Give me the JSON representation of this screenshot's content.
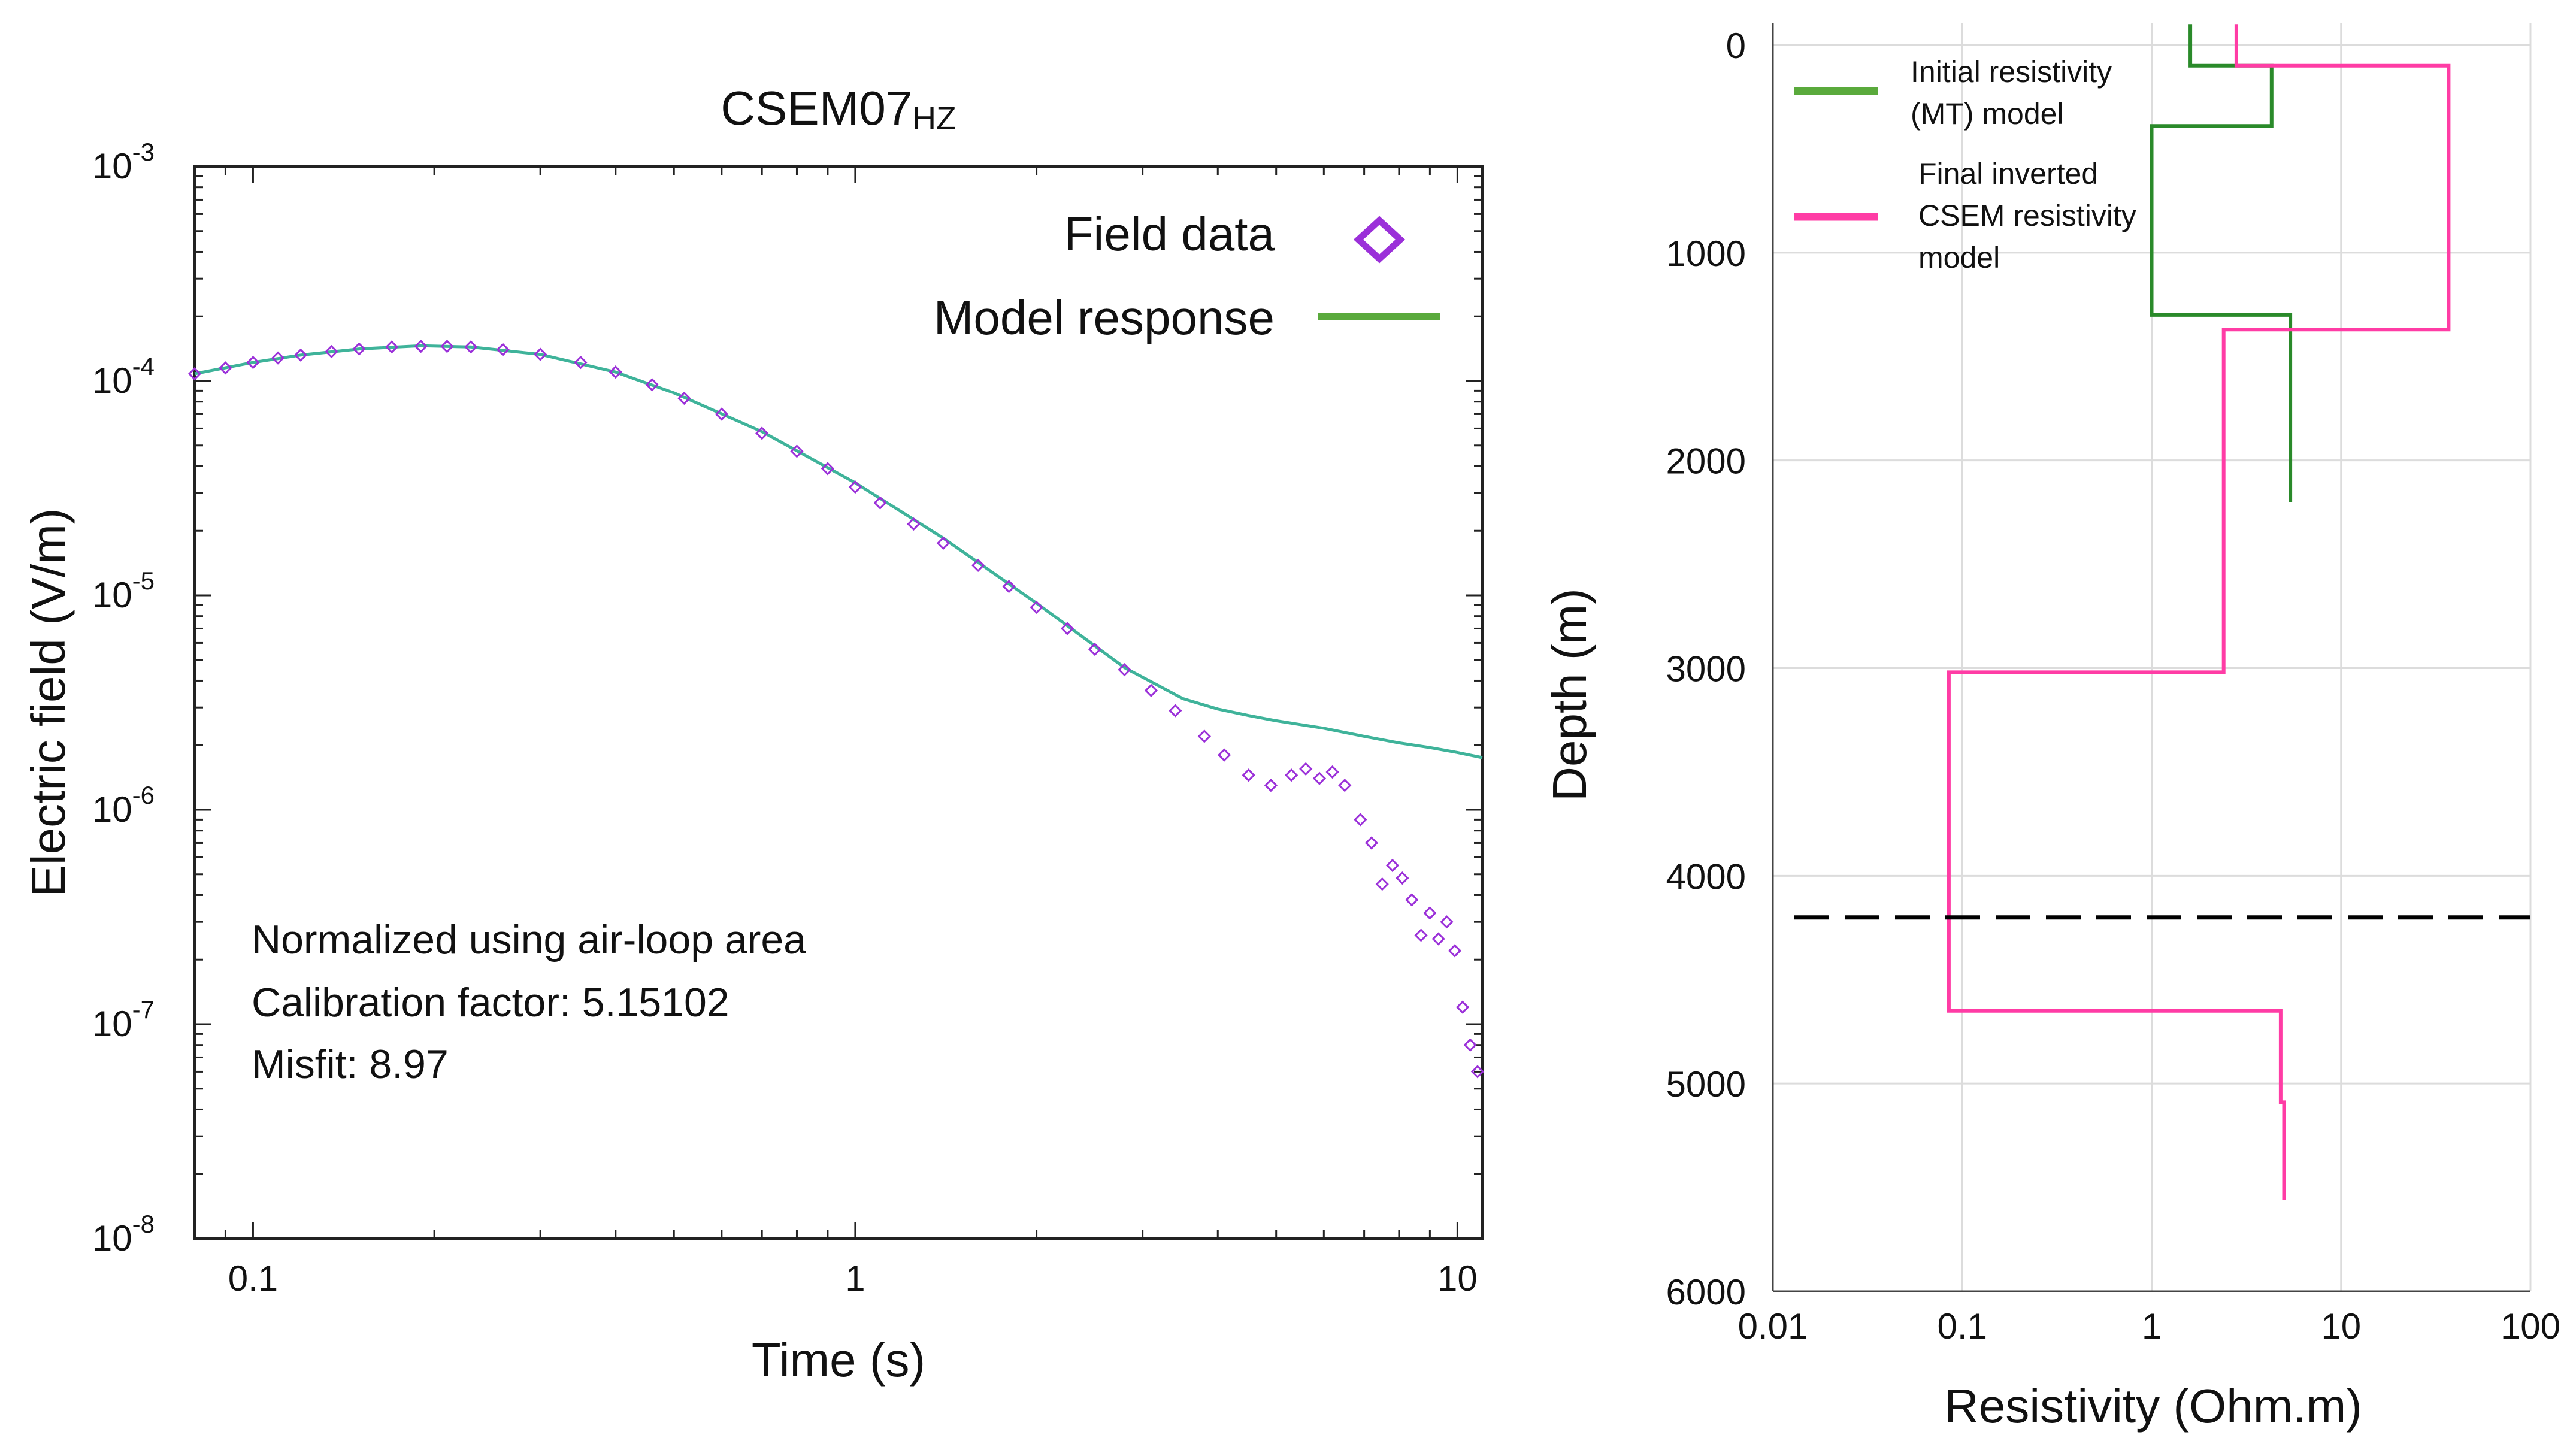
{
  "chart_data": [
    {
      "type": "scatter",
      "title": "CSEM07",
      "title_subscript": "HZ",
      "xlabel": "Time (s)",
      "ylabel": "Electric field (V/m)",
      "xscale": "log",
      "yscale": "log",
      "xlim": [
        0.08,
        11
      ],
      "ylim": [
        1e-08,
        0.001
      ],
      "x_ticks": [
        {
          "value": 0.1,
          "label": "0.1"
        },
        {
          "value": 1,
          "label": "1"
        },
        {
          "value": 10,
          "label": "10"
        }
      ],
      "y_ticks": [
        {
          "value": 0.001,
          "base": "10",
          "exp": "-3"
        },
        {
          "value": 0.0001,
          "base": "10",
          "exp": "-4"
        },
        {
          "value": 1e-05,
          "base": "10",
          "exp": "-5"
        },
        {
          "value": 1e-06,
          "base": "10",
          "exp": "-6"
        },
        {
          "value": 1e-07,
          "base": "10",
          "exp": "-7"
        },
        {
          "value": 1e-08,
          "base": "10",
          "exp": "-8"
        }
      ],
      "grid": false,
      "legend_position": "top-right",
      "series": [
        {
          "name": "Field data",
          "kind": "markers",
          "marker": "diamond",
          "color": "#9b30d9",
          "x": [
            0.08,
            0.09,
            0.1,
            0.11,
            0.12,
            0.135,
            0.15,
            0.17,
            0.19,
            0.21,
            0.23,
            0.26,
            0.3,
            0.35,
            0.4,
            0.46,
            0.52,
            0.6,
            0.7,
            0.8,
            0.9,
            1.0,
            1.1,
            1.25,
            1.4,
            1.6,
            1.8,
            2.0,
            2.25,
            2.5,
            2.8,
            3.1,
            3.4,
            3.8,
            4.1,
            4.5,
            4.9,
            5.3,
            5.6,
            5.9,
            6.2,
            6.5,
            6.9,
            7.2,
            7.5,
            7.8,
            8.1,
            8.4,
            8.7,
            9.0,
            9.3,
            9.6,
            9.9,
            10.2,
            10.5,
            10.8
          ],
          "values": [
            0.000108,
            0.000115,
            0.000122,
            0.000128,
            0.000132,
            0.000137,
            0.000141,
            0.000144,
            0.000145,
            0.000145,
            0.000144,
            0.00014,
            0.000133,
            0.000122,
            0.00011,
            9.6e-05,
            8.3e-05,
            7e-05,
            5.7e-05,
            4.7e-05,
            3.9e-05,
            3.2e-05,
            2.7e-05,
            2.15e-05,
            1.75e-05,
            1.38e-05,
            1.1e-05,
            8.8e-06,
            7e-06,
            5.6e-06,
            4.5e-06,
            3.6e-06,
            2.9e-06,
            2.2e-06,
            1.8e-06,
            1.45e-06,
            1.3e-06,
            1.45e-06,
            1.55e-06,
            1.4e-06,
            1.5e-06,
            1.3e-06,
            9e-07,
            7e-07,
            4.5e-07,
            5.5e-07,
            4.8e-07,
            3.8e-07,
            2.6e-07,
            3.3e-07,
            2.5e-07,
            3e-07,
            2.2e-07,
            1.2e-07,
            8e-08,
            6e-08
          ]
        },
        {
          "name": "Model response",
          "kind": "line",
          "color": "#5aaa3c",
          "line_color": "#3fb39a",
          "x": [
            0.08,
            0.1,
            0.12,
            0.15,
            0.19,
            0.23,
            0.3,
            0.4,
            0.5,
            0.7,
            1.0,
            1.4,
            2.0,
            2.8,
            3.5,
            4.0,
            4.5,
            5.0,
            6.0,
            7.0,
            8.0,
            9.0,
            10.0,
            11.0
          ],
          "values": [
            0.000108,
            0.000122,
            0.000132,
            0.000141,
            0.000146,
            0.000144,
            0.000133,
            0.00011,
            8.8e-05,
            5.8e-05,
            3.35e-05,
            1.85e-05,
            9.2e-06,
            4.6e-06,
            3.3e-06,
            2.95e-06,
            2.75e-06,
            2.6e-06,
            2.4e-06,
            2.2e-06,
            2.05e-06,
            1.95e-06,
            1.85e-06,
            1.75e-06
          ]
        }
      ],
      "annotations": [
        "Normalized using air-loop area",
        "Calibration factor: 5.15102",
        "Misfit: 8.97"
      ]
    },
    {
      "type": "line",
      "title": "",
      "xlabel": "Resistivity (Ohm.m)",
      "ylabel": "Depth (m)",
      "xscale": "log",
      "xlim": [
        0.01,
        100
      ],
      "ylim": [
        0,
        6000
      ],
      "y_inverted": true,
      "x_ticks": [
        {
          "value": 0.01,
          "label": "0.01"
        },
        {
          "value": 0.1,
          "label": "0.1"
        },
        {
          "value": 1,
          "label": "1"
        },
        {
          "value": 10,
          "label": "10"
        },
        {
          "value": 100,
          "label": "100"
        }
      ],
      "y_ticks": [
        {
          "value": 0,
          "label": "0"
        },
        {
          "value": 1000,
          "label": "1000"
        },
        {
          "value": 2000,
          "label": "2000"
        },
        {
          "value": 3000,
          "label": "3000"
        },
        {
          "value": 4000,
          "label": "4000"
        },
        {
          "value": 5000,
          "label": "5000"
        },
        {
          "value": 6000,
          "label": "6000"
        }
      ],
      "grid": true,
      "legend_position": "top-left",
      "series": [
        {
          "name_lines": [
            "Initial resistivity",
            "(MT) model"
          ],
          "color": "#2a8a2a",
          "legend_color": "#5aaa3c",
          "points": [
            {
              "resistivity": 1.6,
              "depth": -100
            },
            {
              "resistivity": 1.6,
              "depth": 100
            },
            {
              "resistivity": 4.3,
              "depth": 100
            },
            {
              "resistivity": 4.3,
              "depth": 390
            },
            {
              "resistivity": 1.0,
              "depth": 390
            },
            {
              "resistivity": 1.0,
              "depth": 1300
            },
            {
              "resistivity": 5.4,
              "depth": 1300
            },
            {
              "resistivity": 5.4,
              "depth": 2200
            }
          ]
        },
        {
          "name_lines": [
            "Final inverted",
            "CSEM resistivity",
            "model"
          ],
          "color": "#ff3ca5",
          "legend_color": "#ff3ca5",
          "points": [
            {
              "resistivity": 2.8,
              "depth": -100
            },
            {
              "resistivity": 2.8,
              "depth": 100
            },
            {
              "resistivity": 37,
              "depth": 100
            },
            {
              "resistivity": 37,
              "depth": 1370
            },
            {
              "resistivity": 2.4,
              "depth": 1370
            },
            {
              "resistivity": 2.4,
              "depth": 3020
            },
            {
              "resistivity": 0.085,
              "depth": 3020
            },
            {
              "resistivity": 0.085,
              "depth": 4650
            },
            {
              "resistivity": 4.8,
              "depth": 4650
            },
            {
              "resistivity": 4.8,
              "depth": 5090
            },
            {
              "resistivity": 5.0,
              "depth": 5090
            },
            {
              "resistivity": 5.0,
              "depth": 5560
            }
          ]
        }
      ],
      "reference_line": {
        "depth": 4200,
        "style": "dashed",
        "color": "#000000"
      }
    }
  ]
}
